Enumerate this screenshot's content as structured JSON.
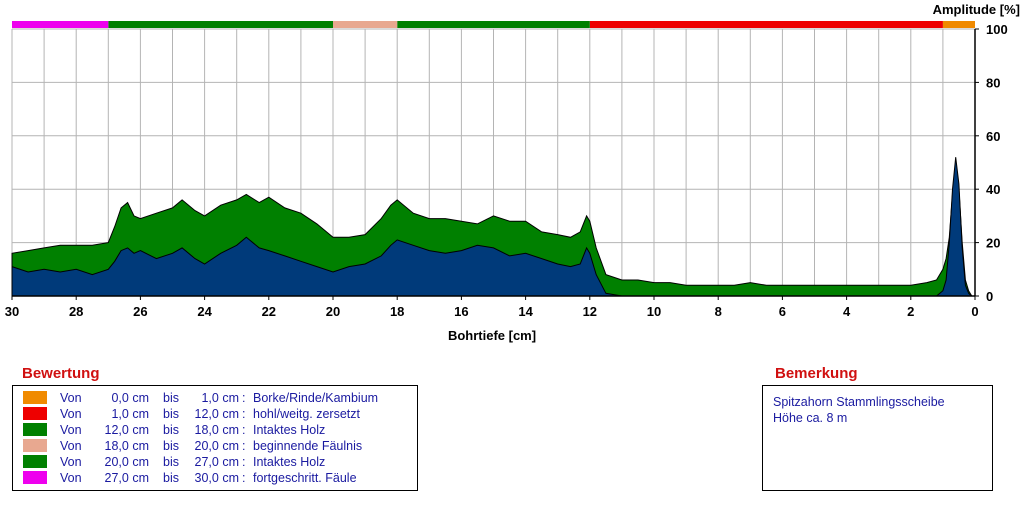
{
  "chart_data": {
    "type": "area",
    "xlabel": "Bohrtiefe [cm]",
    "ylabel": "Amplitude [%]",
    "xlim": [
      30,
      0
    ],
    "ylim": [
      0,
      100
    ],
    "x_ticks": [
      30,
      28,
      26,
      24,
      22,
      20,
      18,
      16,
      14,
      12,
      10,
      8,
      6,
      4,
      2,
      0
    ],
    "y_ticks": [
      0,
      20,
      40,
      60,
      80,
      100
    ],
    "grid": true,
    "series": [
      {
        "color": "#008000",
        "x": [
          30,
          29.5,
          29,
          28.5,
          28,
          27.5,
          27,
          26.8,
          26.6,
          26.4,
          26.2,
          26,
          25.5,
          25,
          24.7,
          24.3,
          24,
          23.5,
          23,
          22.7,
          22.3,
          22,
          21.5,
          21,
          20.5,
          20,
          19.5,
          19,
          18.5,
          18.2,
          18,
          17.5,
          17,
          16.5,
          16,
          15.5,
          15,
          14.5,
          14,
          13.5,
          13,
          12.6,
          12.3,
          12.1,
          12,
          11.8,
          11.5,
          11,
          10.5,
          10,
          9.5,
          9,
          8.5,
          8,
          7.5,
          7,
          6.5,
          6,
          5.5,
          5,
          4.5,
          4,
          3.5,
          3,
          2.5,
          2,
          1.5,
          1.2,
          1,
          0.9,
          0.8,
          0.7,
          0.6,
          0.5,
          0.4,
          0.3,
          0.2,
          0.1,
          0
        ],
        "values": [
          16,
          17,
          18,
          19,
          19,
          19,
          20,
          26,
          33,
          35,
          30,
          29,
          31,
          33,
          36,
          32,
          30,
          34,
          36,
          38,
          35,
          37,
          33,
          31,
          27,
          22,
          22,
          23,
          29,
          34,
          36,
          31,
          29,
          29,
          28,
          27,
          30,
          28,
          28,
          24,
          23,
          22,
          24,
          30,
          28,
          18,
          8,
          6,
          6,
          5,
          5,
          4,
          4,
          4,
          4,
          5,
          4,
          4,
          4,
          4,
          4,
          4,
          4,
          4,
          4,
          4,
          5,
          6,
          10,
          14,
          22,
          38,
          50,
          40,
          20,
          6,
          2,
          0,
          0
        ]
      },
      {
        "color": "#003a7a",
        "x": [
          30,
          29.5,
          29,
          28.5,
          28,
          27.5,
          27,
          26.8,
          26.6,
          26.4,
          26.2,
          26,
          25.5,
          25,
          24.7,
          24.3,
          24,
          23.5,
          23,
          22.7,
          22.3,
          22,
          21.5,
          21,
          20.5,
          20,
          19.5,
          19,
          18.5,
          18.2,
          18,
          17.5,
          17,
          16.5,
          16,
          15.5,
          15,
          14.5,
          14,
          13.5,
          13,
          12.6,
          12.3,
          12.1,
          12,
          11.8,
          11.5,
          11,
          10.5,
          10,
          9.5,
          9,
          8.5,
          8,
          7.5,
          7,
          6.5,
          6,
          5.5,
          5,
          4.5,
          4,
          3.5,
          3,
          2.5,
          2,
          1.5,
          1.2,
          1,
          0.9,
          0.8,
          0.7,
          0.6,
          0.5,
          0.4,
          0.3,
          0.2,
          0.1,
          0
        ],
        "values": [
          11,
          9,
          10,
          9,
          10,
          8,
          10,
          13,
          17,
          18,
          16,
          17,
          14,
          16,
          18,
          14,
          12,
          16,
          19,
          22,
          18,
          17,
          15,
          13,
          11,
          9,
          11,
          12,
          15,
          19,
          21,
          19,
          17,
          16,
          17,
          19,
          18,
          15,
          16,
          14,
          12,
          11,
          12,
          18,
          16,
          8,
          1,
          0,
          0,
          0,
          0,
          0,
          0,
          0,
          0,
          0,
          0,
          0,
          0,
          0,
          0,
          0,
          0,
          0,
          0,
          0,
          0,
          0,
          2,
          6,
          20,
          40,
          52,
          42,
          18,
          4,
          1,
          0,
          0
        ]
      }
    ],
    "rating_bar": [
      {
        "from": 0,
        "to": 1,
        "color": "#f08a00"
      },
      {
        "from": 1,
        "to": 12,
        "color": "#ee0000"
      },
      {
        "from": 12,
        "to": 18,
        "color": "#008000"
      },
      {
        "from": 18,
        "to": 20,
        "color": "#e8a890"
      },
      {
        "from": 20,
        "to": 27,
        "color": "#008000"
      },
      {
        "from": 27,
        "to": 30,
        "color": "#ee00ee"
      }
    ]
  },
  "legend": {
    "title": "Bewertung",
    "rows": [
      {
        "von": "Von",
        "from": "0,0 cm",
        "bis": "bis",
        "to": "1,0 cm",
        "colon": ":",
        "desc": "Borke/Rinde/Kambium",
        "color": "#f08a00"
      },
      {
        "von": "Von",
        "from": "1,0 cm",
        "bis": "bis",
        "to": "12,0 cm",
        "colon": ":",
        "desc": "hohl/weitg. zersetzt",
        "color": "#ee0000"
      },
      {
        "von": "Von",
        "from": "12,0 cm",
        "bis": "bis",
        "to": "18,0 cm",
        "colon": ":",
        "desc": "Intaktes Holz",
        "color": "#008000"
      },
      {
        "von": "Von",
        "from": "18,0 cm",
        "bis": "bis",
        "to": "20,0 cm",
        "colon": ":",
        "desc": "beginnende Fäulnis",
        "color": "#e8a890"
      },
      {
        "von": "Von",
        "from": "20,0 cm",
        "bis": "bis",
        "to": "27,0 cm",
        "colon": ":",
        "desc": "Intaktes Holz",
        "color": "#008000"
      },
      {
        "von": "Von",
        "from": "27,0 cm",
        "bis": "bis",
        "to": "30,0 cm",
        "colon": ":",
        "desc": "fortgeschritt. Fäule",
        "color": "#ee00ee"
      }
    ]
  },
  "remark": {
    "title": "Bemerkung",
    "lines": [
      "Spitzahorn Stammlingsscheibe",
      "Höhe ca. 8 m"
    ]
  }
}
